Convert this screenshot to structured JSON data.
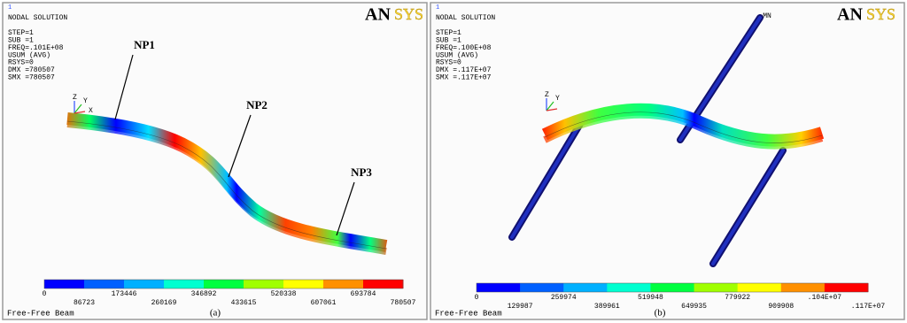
{
  "panels": [
    {
      "index": "1",
      "header": "NODAL SOLUTION",
      "info": [
        "STEP=1",
        "SUB =1",
        "FREQ=.101E+08",
        "USUM     (AVG)",
        "RSYS=0",
        "DMX =780507",
        "SMX =780507"
      ],
      "logo": {
        "an": "AN",
        "sys": "SYS"
      },
      "labels": [
        "NP1",
        "NP2",
        "NP3"
      ],
      "triad": [
        "Z",
        "Y",
        "X"
      ],
      "legend": {
        "top": [
          "0",
          "173446",
          "346892",
          "520338",
          "693784"
        ],
        "bottom": [
          "86723",
          "260169",
          "433615",
          "607061",
          "780507"
        ]
      },
      "footer": "Free-Free Beam",
      "caption": "(a)"
    },
    {
      "index": "1",
      "header": "NODAL SOLUTION",
      "info": [
        "STEP=1",
        "SUB =1",
        "FREQ=.100E+08",
        "USUM     (AVG)",
        "RSYS=0",
        "DMX =.117E+07",
        "SMX =.117E+07"
      ],
      "logo": {
        "an": "AN",
        "sys": "SYS"
      },
      "labels": [
        "MN"
      ],
      "triad": [
        "Z",
        "Y"
      ],
      "legend": {
        "top": [
          "0",
          "259974",
          "519948",
          "779922",
          ".104E+07"
        ],
        "bottom": [
          "129987",
          "389961",
          "649935",
          "909908",
          ".117E+07"
        ]
      },
      "footer": "Free-Free Beam",
      "caption": "(b)"
    }
  ]
}
